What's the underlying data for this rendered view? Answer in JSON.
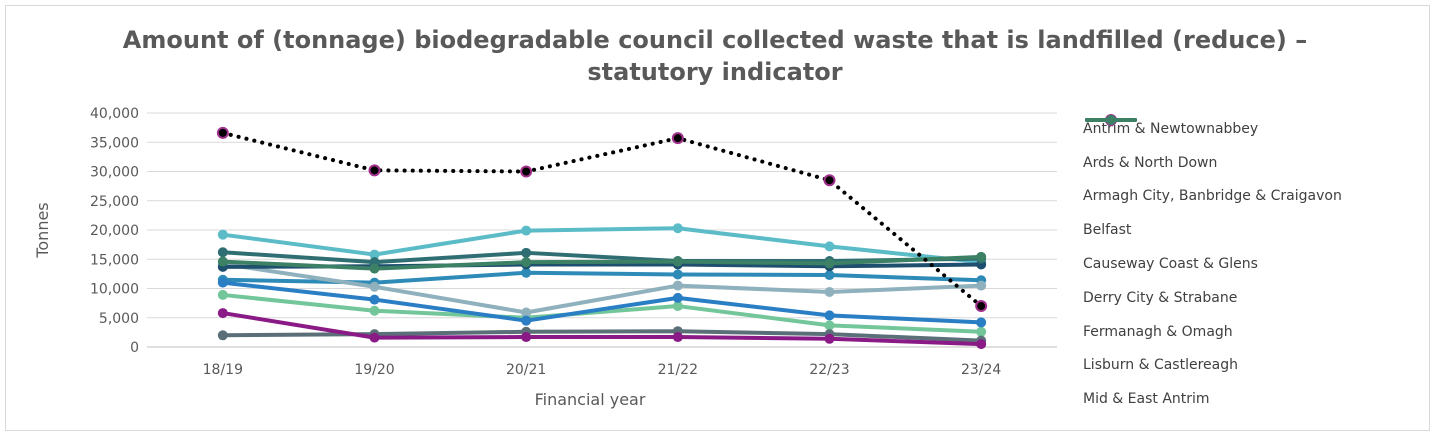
{
  "chart_data": {
    "type": "line",
    "title": "Amount of (tonnage) biodegradable council collected waste that is landfilled (reduce) – statutory indicator",
    "xlabel": "Financial year",
    "ylabel": "Tonnes",
    "ylim": [
      0,
      40000
    ],
    "yticks": [
      0,
      5000,
      10000,
      15000,
      20000,
      25000,
      30000,
      35000,
      40000
    ],
    "ytick_labels": [
      "0",
      "5,000",
      "10,000",
      "15,000",
      "20,000",
      "25,000",
      "30,000",
      "35,000",
      "40,000"
    ],
    "categories": [
      "18/19",
      "19/20",
      "20/21",
      "21/22",
      "22/23",
      "23/24"
    ],
    "grid": true,
    "legend_position": "right",
    "series": [
      {
        "name": "Antrim & Newtownabbey",
        "color": "#2e8bb8",
        "dotted": false,
        "values": [
          11500,
          11000,
          12700,
          12400,
          12300,
          11400
        ]
      },
      {
        "name": "Ards & North Down",
        "color": "#5bbcc8",
        "dotted": false,
        "values": [
          19200,
          15800,
          19900,
          20300,
          17200,
          14500
        ]
      },
      {
        "name": "Armagh City, Banbridge & Craigavon",
        "color": "#72c69a",
        "dotted": false,
        "values": [
          8900,
          6200,
          5000,
          7000,
          3700,
          2600
        ]
      },
      {
        "name": "Belfast",
        "color": "#000000",
        "dotted": true,
        "marker_color": "#a3318e",
        "values": [
          36600,
          30200,
          30000,
          35700,
          28500,
          7000
        ]
      },
      {
        "name": "Causeway Coast & Glens",
        "color": "#8fb0bd",
        "dotted": false,
        "values": [
          14200,
          10300,
          5900,
          10500,
          9400,
          10500
        ]
      },
      {
        "name": "Derry City & Strabane",
        "color": "#2a7ec4",
        "dotted": false,
        "values": [
          11000,
          8100,
          4500,
          8400,
          5400,
          4200
        ]
      },
      {
        "name": "Fermanagh & Omagh",
        "color": "#1e4f6e",
        "dotted": false,
        "values": [
          13700,
          13800,
          14100,
          14100,
          13800,
          14100
        ]
      },
      {
        "name": "Lisburn & Castlereagh",
        "color": "#2f6e72",
        "dotted": false,
        "values": [
          16200,
          14500,
          16100,
          14700,
          14700,
          15100
        ]
      },
      {
        "name": "Mid & East Antrim",
        "color": "#3c8066",
        "dotted": false,
        "values": [
          14600,
          13400,
          14500,
          14600,
          14300,
          15400
        ]
      },
      {
        "name": "",
        "color": "#5b6f78",
        "dotted": false,
        "values": [
          2000,
          2200,
          2600,
          2700,
          2200,
          1100
        ]
      },
      {
        "name": "",
        "color": "#8a1a86",
        "dotted": false,
        "values": [
          5800,
          1600,
          1700,
          1700,
          1400,
          500
        ]
      }
    ]
  }
}
